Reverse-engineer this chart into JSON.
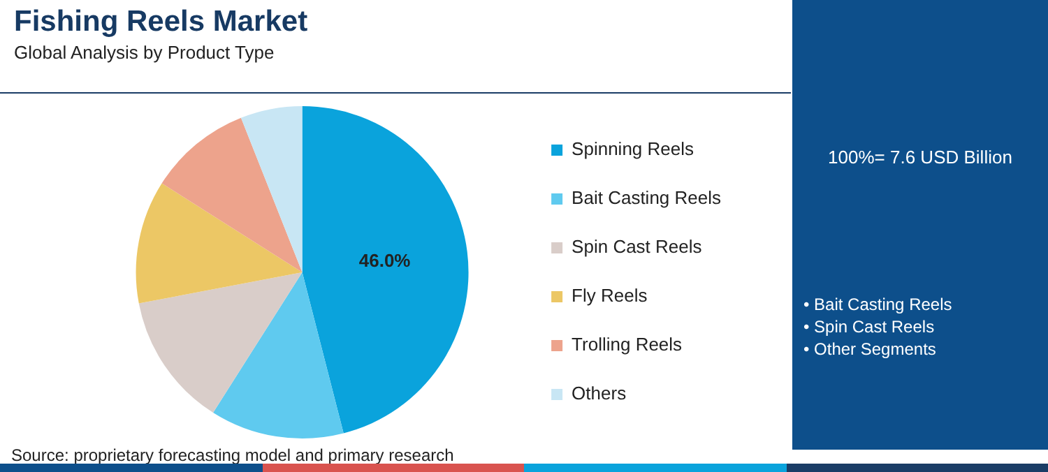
{
  "chart_data": {
    "type": "pie",
    "title": "Fishing Reels Market",
    "subtitle": "Global Analysis by Product Type",
    "categories": [
      "Spinning Reels",
      "Bait Casting Reels",
      "Spin Cast Reels",
      "Fly Reels",
      "Trolling Reels",
      "Others"
    ],
    "values": [
      46.0,
      13,
      13,
      12,
      10,
      6
    ],
    "colors": [
      "#0aa3dc",
      "#5fcaef",
      "#d9cdc9",
      "#ecc765",
      "#eda38c",
      "#c8e6f4"
    ],
    "value_labels": [
      "46.0%",
      null,
      null,
      null,
      null,
      null
    ],
    "legend": "right",
    "annotations": [
      "100%= 7.6 USD Billion",
      "• Bait Casting Reels",
      "• Spin Cast Reels",
      "• Other Segments",
      "Source: proprietary forecasting model and primary research"
    ]
  }
}
